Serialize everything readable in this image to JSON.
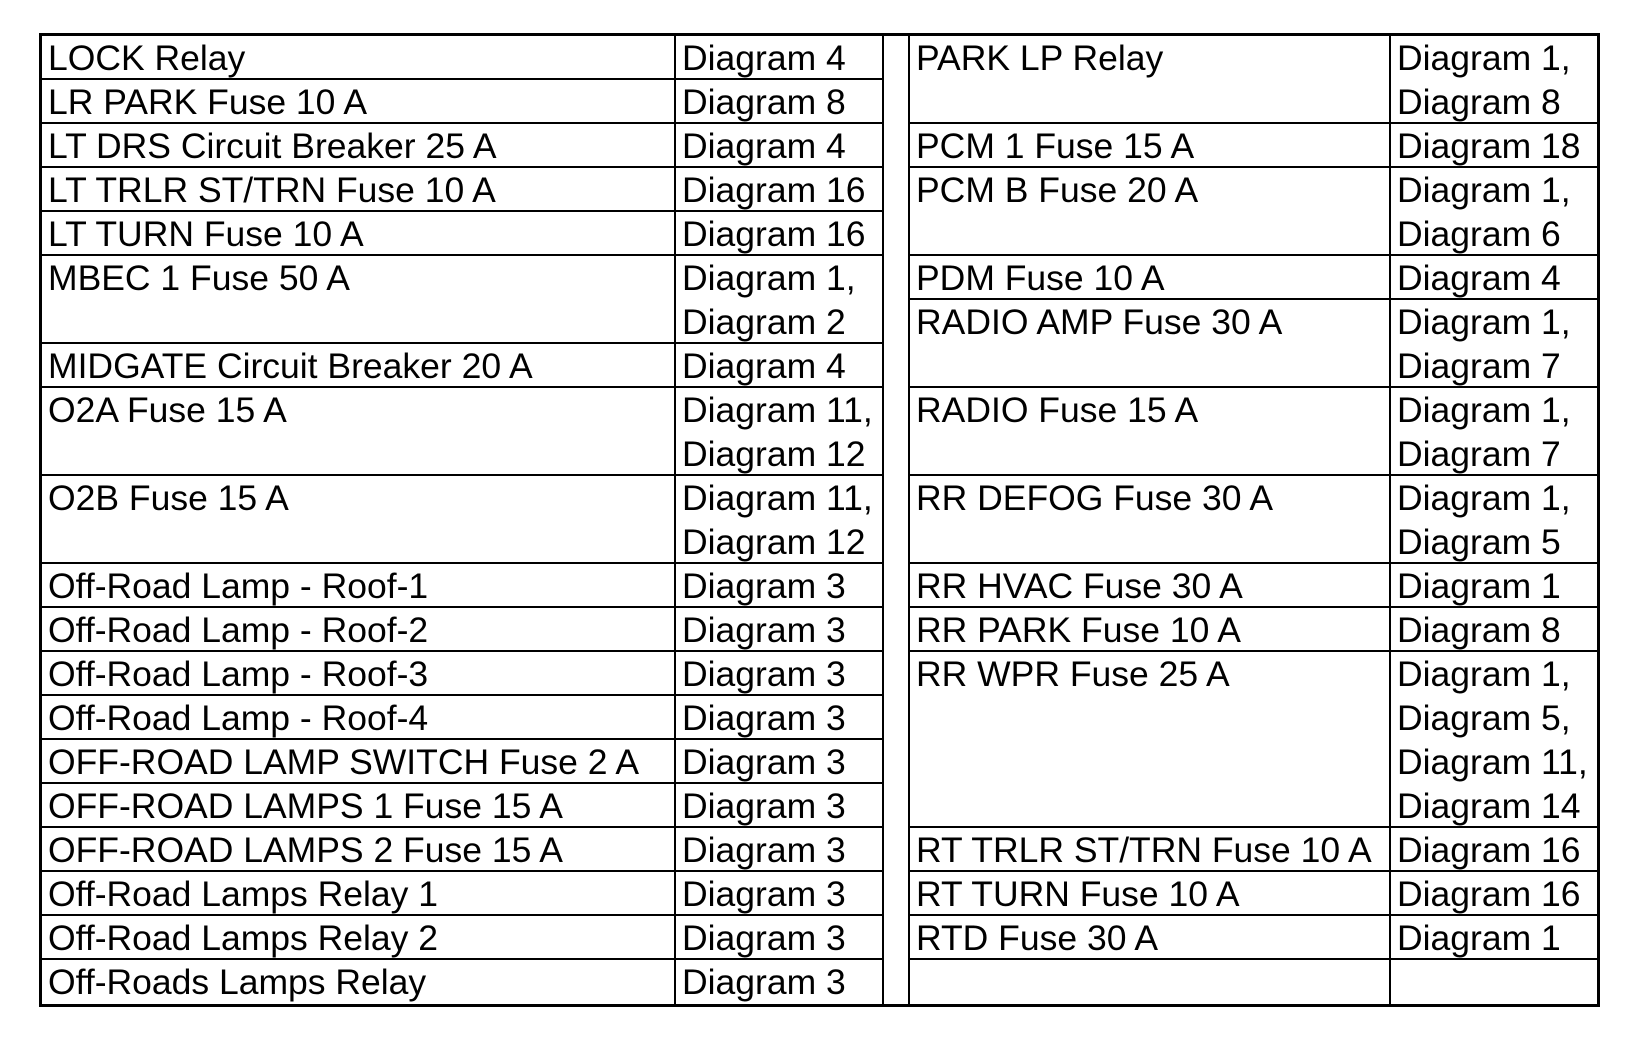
{
  "left_table": [
    {
      "name": "LOCK Relay",
      "diagrams": [
        "Diagram 4"
      ]
    },
    {
      "name": "LR PARK Fuse 10 A",
      "diagrams": [
        "Diagram 8"
      ]
    },
    {
      "name": "LT DRS Circuit Breaker 25 A",
      "diagrams": [
        "Diagram 4"
      ]
    },
    {
      "name": "LT TRLR ST/TRN Fuse 10 A",
      "diagrams": [
        "Diagram 16"
      ]
    },
    {
      "name": "LT TURN Fuse 10 A",
      "diagrams": [
        "Diagram 16"
      ]
    },
    {
      "name": "MBEC 1 Fuse 50 A",
      "diagrams": [
        "Diagram 1,",
        "Diagram 2"
      ]
    },
    {
      "name": "MIDGATE Circuit Breaker 20 A",
      "diagrams": [
        "Diagram 4"
      ]
    },
    {
      "name": "O2A Fuse 15 A",
      "diagrams": [
        "Diagram 11,",
        "Diagram 12"
      ]
    },
    {
      "name": "O2B Fuse 15 A",
      "diagrams": [
        "Diagram 11,",
        "Diagram 12"
      ]
    },
    {
      "name": "Off-Road Lamp - Roof-1",
      "diagrams": [
        "Diagram 3"
      ]
    },
    {
      "name": "Off-Road Lamp - Roof-2",
      "diagrams": [
        "Diagram 3"
      ]
    },
    {
      "name": "Off-Road Lamp - Roof-3",
      "diagrams": [
        "Diagram 3"
      ]
    },
    {
      "name": "Off-Road Lamp - Roof-4",
      "diagrams": [
        "Diagram 3"
      ]
    },
    {
      "name": "OFF-ROAD LAMP SWITCH Fuse 2 A",
      "diagrams": [
        "Diagram 3"
      ]
    },
    {
      "name": "OFF-ROAD LAMPS 1 Fuse 15 A",
      "diagrams": [
        "Diagram 3"
      ]
    },
    {
      "name": "OFF-ROAD LAMPS 2 Fuse 15 A",
      "diagrams": [
        "Diagram 3"
      ]
    },
    {
      "name": "Off-Road Lamps Relay 1",
      "diagrams": [
        "Diagram 3"
      ]
    },
    {
      "name": "Off-Road Lamps Relay 2",
      "diagrams": [
        "Diagram 3"
      ]
    },
    {
      "name": "Off-Roads Lamps Relay",
      "diagrams": [
        "Diagram 3"
      ]
    }
  ],
  "right_table": [
    {
      "name": "PARK LP Relay",
      "diagrams": [
        "Diagram 1,",
        "Diagram 8"
      ]
    },
    {
      "name": "PCM 1 Fuse 15 A",
      "diagrams": [
        "Diagram 18"
      ]
    },
    {
      "name": "PCM B Fuse 20 A",
      "diagrams": [
        "Diagram 1,",
        "Diagram 6"
      ]
    },
    {
      "name": "PDM Fuse 10 A",
      "diagrams": [
        "Diagram 4"
      ]
    },
    {
      "name": "RADIO AMP Fuse 30 A",
      "diagrams": [
        "Diagram 1,",
        "Diagram 7"
      ]
    },
    {
      "name": "RADIO Fuse 15 A",
      "diagrams": [
        "Diagram 1,",
        "Diagram 7"
      ]
    },
    {
      "name": "RR DEFOG Fuse 30 A",
      "diagrams": [
        "Diagram 1,",
        "Diagram 5"
      ]
    },
    {
      "name": "RR HVAC Fuse 30 A",
      "diagrams": [
        "Diagram 1"
      ]
    },
    {
      "name": "RR PARK Fuse 10 A",
      "diagrams": [
        "Diagram 8"
      ]
    },
    {
      "name": "RR WPR Fuse 25 A",
      "diagrams": [
        "Diagram 1,",
        "Diagram 5,",
        "Diagram 11,",
        "Diagram 14"
      ]
    },
    {
      "name": "RT TRLR ST/TRN Fuse 10 A",
      "diagrams": [
        "Diagram 16"
      ]
    },
    {
      "name": "RT TURN Fuse 10 A",
      "diagrams": [
        "Diagram 16"
      ]
    },
    {
      "name": "RTD Fuse 30 A",
      "diagrams": [
        "Diagram 1"
      ]
    },
    {
      "name": "",
      "diagrams": []
    }
  ]
}
